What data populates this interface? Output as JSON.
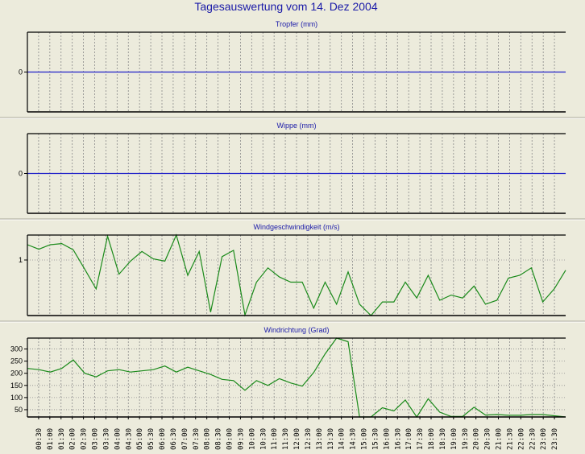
{
  "title": "Tagesauswertung vom 14. Dez 2004",
  "colors": {
    "zero_line": "#2020c8",
    "series": "#1a8a1a",
    "title": "#1a1aa8",
    "grid": "#8a8a8a",
    "background": "#ecebdc"
  },
  "x_labels": [
    "00:30",
    "01:00",
    "01:30",
    "02:00",
    "02:30",
    "03:00",
    "03:30",
    "04:00",
    "04:30",
    "05:00",
    "05:30",
    "06:00",
    "06:30",
    "07:00",
    "07:30",
    "08:00",
    "08:30",
    "09:00",
    "09:30",
    "10:00",
    "10:30",
    "11:00",
    "11:30",
    "12:00",
    "12:30",
    "13:00",
    "13:30",
    "14:00",
    "14:30",
    "15:00",
    "15:30",
    "16:00",
    "16:30",
    "17:00",
    "17:30",
    "18:00",
    "18:30",
    "19:00",
    "19:30",
    "20:00",
    "20:30",
    "21:00",
    "21:30",
    "22:00",
    "22:30",
    "23:00",
    "23:30"
  ],
  "chart_data": [
    {
      "type": "line",
      "title": "Tropfer (mm)",
      "yticks": [
        0
      ],
      "ylim": [
        -1,
        1
      ],
      "zero_line": true,
      "grid": true,
      "series": []
    },
    {
      "type": "line",
      "title": "Wippe (mm)",
      "yticks": [
        0
      ],
      "ylim": [
        -1,
        1
      ],
      "zero_line": true,
      "grid": true,
      "series": []
    },
    {
      "type": "line",
      "title": "Windgeschwindigkeit (m/s)",
      "yticks": [
        1
      ],
      "ylim": [
        0.02,
        1.44
      ],
      "grid": true,
      "series": [
        {
          "values": [
            1.27,
            1.19,
            1.27,
            1.29,
            1.18,
            0.84,
            0.49,
            1.42,
            0.75,
            0.98,
            1.15,
            1.02,
            0.98,
            1.44,
            0.73,
            1.15,
            0.08,
            1.06,
            1.17,
            0.03,
            0.61,
            0.86,
            0.7,
            0.61,
            0.61,
            0.15,
            0.61,
            0.22,
            0.79,
            0.22,
            0.02,
            0.26,
            0.26,
            0.61,
            0.33,
            0.73,
            0.29,
            0.38,
            0.33,
            0.54,
            0.22,
            0.29,
            0.68,
            0.73,
            0.86,
            0.26,
            0.49,
            0.82
          ]
        }
      ]
    },
    {
      "type": "line",
      "title": "Windrichtung (Grad)",
      "yticks": [
        300,
        250,
        200,
        150,
        100,
        50
      ],
      "ylim": [
        20,
        345
      ],
      "grid": true,
      "series": [
        {
          "values": [
            220,
            215,
            205,
            220,
            255,
            200,
            185,
            210,
            215,
            205,
            210,
            215,
            230,
            205,
            225,
            210,
            195,
            175,
            170,
            130,
            170,
            150,
            178,
            160,
            147,
            203,
            280,
            345,
            330,
            20,
            20,
            58,
            45,
            90,
            20,
            95,
            40,
            22,
            22,
            60,
            28,
            30,
            27,
            27,
            30,
            30,
            25,
            20
          ]
        }
      ]
    }
  ]
}
